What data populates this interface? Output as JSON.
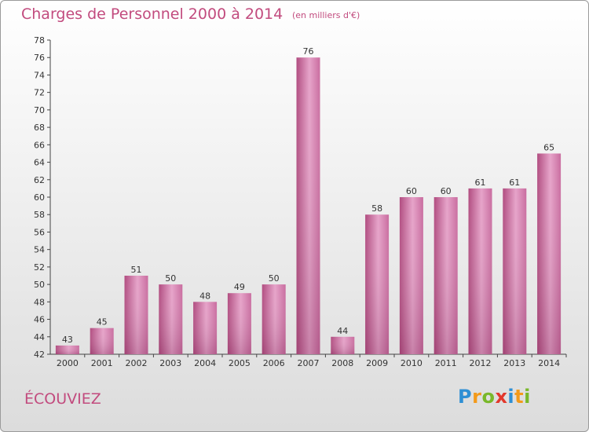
{
  "chart_data": {
    "type": "bar",
    "title": "Charges de Personnel 2000 à 2014",
    "subtitle": "(en milliers d'€)",
    "categories": [
      "2000",
      "2001",
      "2002",
      "2003",
      "2004",
      "2005",
      "2006",
      "2007",
      "2008",
      "2009",
      "2010",
      "2011",
      "2012",
      "2013",
      "2014"
    ],
    "values": [
      43,
      45,
      51,
      50,
      48,
      49,
      50,
      76,
      44,
      58,
      60,
      60,
      61,
      61,
      65
    ],
    "ylim": [
      42,
      78
    ],
    "yticks": [
      42,
      44,
      46,
      48,
      50,
      52,
      54,
      56,
      58,
      60,
      62,
      64,
      66,
      68,
      70,
      72,
      74,
      76,
      78
    ],
    "grid": false,
    "bar_color": "#c2558e"
  },
  "place_name": "ÉCOUVIEZ",
  "logo": {
    "text": "Proxiti",
    "letters": [
      {
        "ch": "P",
        "color": "#2e8fd4"
      },
      {
        "ch": "r",
        "color": "#f39a1a"
      },
      {
        "ch": "o",
        "color": "#79b82a"
      },
      {
        "ch": "x",
        "color": "#e2382c"
      },
      {
        "ch": "i",
        "color": "#2e8fd4"
      },
      {
        "ch": "t",
        "color": "#f39a1a"
      },
      {
        "ch": "i",
        "color": "#79b82a"
      }
    ]
  }
}
